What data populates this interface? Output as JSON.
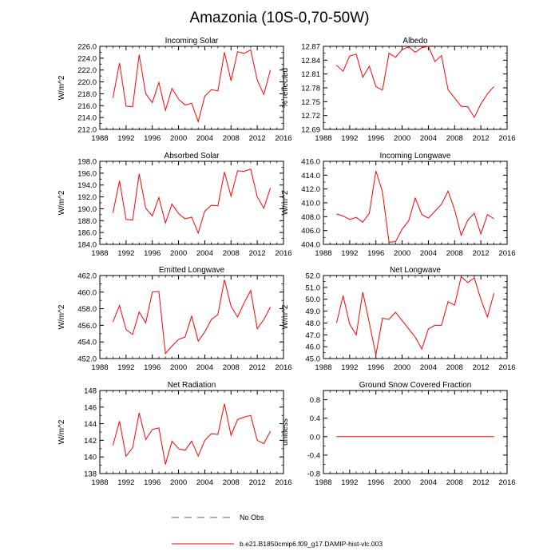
{
  "figure_title": "Amazonia (10S-0,70-50W)",
  "chart_data": [
    {
      "type": "line",
      "title": "Incoming Solar",
      "xlabel": "",
      "ylabel": "W/m^2",
      "xlim": [
        1988,
        2016
      ],
      "ylim": [
        212.0,
        226.0
      ],
      "xticks": [
        "1988",
        "1992",
        "1996",
        "2000",
        "2004",
        "2008",
        "2012",
        "2016"
      ],
      "yticks": [
        "212.0",
        "214.0",
        "216.0",
        "218.0",
        "220.0",
        "222.0",
        "224.0",
        "226.0"
      ],
      "series": [
        {
          "name": "b.e21.B1850cmip6.f09_g17.DAMIP-hist-vlc.003",
          "color": "#ff0000",
          "x": [
            1990,
            1991,
            1992,
            1993,
            1994,
            1995,
            1996,
            1997,
            1998,
            1999,
            2000,
            2001,
            2002,
            2003,
            2004,
            2005,
            2006,
            2007,
            2008,
            2009,
            2010,
            2011,
            2012,
            2013,
            2014
          ],
          "values": [
            217.3,
            223.2,
            215.9,
            215.8,
            224.6,
            218.0,
            216.5,
            219.9,
            215.2,
            218.9,
            217.1,
            216.1,
            216.4,
            213.3,
            217.6,
            218.7,
            218.5,
            225.0,
            220.2,
            225.1,
            224.8,
            225.4,
            220.3,
            217.9,
            222.0
          ]
        }
      ]
    },
    {
      "type": "line",
      "title": "Albedo",
      "xlabel": "",
      "ylabel": "% reflected",
      "xlim": [
        1988,
        2016
      ],
      "ylim": [
        12.69,
        12.87
      ],
      "xticks": [
        "1988",
        "1992",
        "1996",
        "2000",
        "2004",
        "2008",
        "2012",
        "2016"
      ],
      "yticks": [
        "12.69",
        "12.72",
        "12.75",
        "12.78",
        "12.81",
        "12.84",
        "12.87"
      ],
      "series": [
        {
          "name": "b.e21.B1850cmip6.f09_g17.DAMIP-hist-vlc.003",
          "color": "#ff0000",
          "x": [
            1990,
            1991,
            1992,
            1993,
            1994,
            1995,
            1996,
            1997,
            1998,
            1999,
            2000,
            2001,
            2002,
            2003,
            2004,
            2005,
            2006,
            2007,
            2008,
            2009,
            2010,
            2011,
            2012,
            2013,
            2014
          ],
          "values": [
            12.829,
            12.816,
            12.849,
            12.853,
            12.803,
            12.827,
            12.783,
            12.775,
            12.855,
            12.846,
            12.863,
            12.869,
            12.857,
            12.867,
            12.87,
            12.837,
            12.85,
            12.776,
            12.758,
            12.74,
            12.739,
            12.716,
            12.745,
            12.767,
            12.783
          ]
        }
      ]
    },
    {
      "type": "line",
      "title": "Absorbed Solar",
      "xlabel": "",
      "ylabel": "W/m^2",
      "xlim": [
        1988,
        2016
      ],
      "ylim": [
        184.0,
        198.0
      ],
      "xticks": [
        "1988",
        "1992",
        "1996",
        "2000",
        "2004",
        "2008",
        "2012",
        "2016"
      ],
      "yticks": [
        "184.0",
        "186.0",
        "188.0",
        "190.0",
        "192.0",
        "194.0",
        "196.0",
        "198.0"
      ],
      "series": [
        {
          "name": "b.e21.B1850cmip6.f09_g17.DAMIP-hist-vlc.003",
          "color": "#ff0000",
          "x": [
            1990,
            1991,
            1992,
            1993,
            1994,
            1995,
            1996,
            1997,
            1998,
            1999,
            2000,
            2001,
            2002,
            2003,
            2004,
            2005,
            2006,
            2007,
            2008,
            2009,
            2010,
            2011,
            2012,
            2013,
            2014
          ],
          "values": [
            189.3,
            194.7,
            188.2,
            188.1,
            195.9,
            190.1,
            188.8,
            191.9,
            187.6,
            190.8,
            189.2,
            188.3,
            188.6,
            185.9,
            189.6,
            190.6,
            190.5,
            196.2,
            192.1,
            196.4,
            196.3,
            196.7,
            192.0,
            190.1,
            193.5
          ]
        }
      ]
    },
    {
      "type": "line",
      "title": "Incoming Longwave",
      "xlabel": "",
      "ylabel": "W/m^2",
      "xlim": [
        1988,
        2016
      ],
      "ylim": [
        404.0,
        416.0
      ],
      "xticks": [
        "1988",
        "1992",
        "1996",
        "2000",
        "2004",
        "2008",
        "2012",
        "2016"
      ],
      "yticks": [
        "404.0",
        "406.0",
        "408.0",
        "410.0",
        "412.0",
        "414.0",
        "416.0"
      ],
      "series": [
        {
          "name": "b.e21.B1850cmip6.f09_g17.DAMIP-hist-vlc.003",
          "color": "#ff0000",
          "x": [
            1990,
            1991,
            1992,
            1993,
            1994,
            1995,
            1996,
            1997,
            1998,
            1999,
            2000,
            2001,
            2002,
            2003,
            2004,
            2005,
            2006,
            2007,
            2008,
            2009,
            2010,
            2011,
            2012,
            2013,
            2014
          ],
          "values": [
            408.4,
            408.1,
            407.6,
            407.9,
            407.2,
            408.5,
            414.6,
            411.6,
            404.3,
            404.4,
            406.2,
            407.4,
            410.7,
            408.3,
            407.8,
            408.8,
            409.8,
            411.7,
            409.0,
            405.3,
            407.5,
            408.5,
            405.5,
            408.3,
            407.7
          ]
        }
      ]
    },
    {
      "type": "line",
      "title": "Emitted Longwave",
      "xlabel": "",
      "ylabel": "W/m^2",
      "xlim": [
        1988,
        2016
      ],
      "ylim": [
        452.0,
        462.0
      ],
      "xticks": [
        "1988",
        "1992",
        "1996",
        "2000",
        "2004",
        "2008",
        "2012",
        "2016"
      ],
      "yticks": [
        "452.0",
        "454.0",
        "456.0",
        "458.0",
        "460.0",
        "462.0"
      ],
      "series": [
        {
          "name": "b.e21.B1850cmip6.f09_g17.DAMIP-hist-vlc.003",
          "color": "#ff0000",
          "x": [
            1990,
            1991,
            1992,
            1993,
            1994,
            1995,
            1996,
            1997,
            1998,
            1999,
            2000,
            2001,
            2002,
            2003,
            2004,
            2005,
            2006,
            2007,
            2008,
            2009,
            2010,
            2011,
            2012,
            2013,
            2014
          ],
          "values": [
            456.4,
            458.4,
            455.5,
            454.9,
            457.6,
            456.3,
            460.0,
            460.1,
            452.6,
            453.5,
            454.3,
            454.6,
            457.1,
            454.1,
            455.2,
            456.7,
            457.3,
            461.5,
            458.3,
            457.0,
            458.7,
            460.2,
            455.6,
            456.7,
            458.2
          ]
        }
      ]
    },
    {
      "type": "line",
      "title": "Net Longwave",
      "xlabel": "",
      "ylabel": "W/m^2",
      "xlim": [
        1988,
        2016
      ],
      "ylim": [
        45.0,
        52.0
      ],
      "xticks": [
        "1988",
        "1992",
        "1996",
        "2000",
        "2004",
        "2008",
        "2012",
        "2016"
      ],
      "yticks": [
        "45.0",
        "46.0",
        "47.0",
        "48.0",
        "49.0",
        "50.0",
        "51.0",
        "52.0"
      ],
      "series": [
        {
          "name": "b.e21.B1850cmip6.f09_g17.DAMIP-hist-vlc.003",
          "color": "#ff0000",
          "x": [
            1990,
            1991,
            1992,
            1993,
            1994,
            1995,
            1996,
            1997,
            1998,
            1999,
            2000,
            2001,
            2002,
            2003,
            2004,
            2005,
            2006,
            2007,
            2008,
            2009,
            2010,
            2011,
            2012,
            2013,
            2014
          ],
          "values": [
            48.0,
            50.3,
            47.9,
            47.0,
            50.6,
            48.0,
            45.3,
            48.4,
            48.3,
            48.9,
            48.2,
            47.5,
            46.8,
            45.8,
            47.5,
            47.8,
            47.8,
            49.8,
            49.5,
            51.9,
            51.4,
            51.8,
            50.0,
            48.5,
            50.5
          ]
        }
      ]
    },
    {
      "type": "line",
      "title": "Net Radiation",
      "xlabel": "",
      "ylabel": "W/m^2",
      "xlim": [
        1988,
        2016
      ],
      "ylim": [
        138,
        148
      ],
      "xticks": [
        "1988",
        "1992",
        "1996",
        "2000",
        "2004",
        "2008",
        "2012",
        "2016"
      ],
      "yticks": [
        "138",
        "140",
        "142",
        "144",
        "146",
        "148"
      ],
      "series": [
        {
          "name": "b.e21.B1850cmip6.f09_g17.DAMIP-hist-vlc.003",
          "color": "#ff0000",
          "x": [
            1990,
            1991,
            1992,
            1993,
            1994,
            1995,
            1996,
            1997,
            1998,
            1999,
            2000,
            2001,
            2002,
            2003,
            2004,
            2005,
            2006,
            2007,
            2008,
            2009,
            2010,
            2011,
            2012,
            2013,
            2014
          ],
          "values": [
            141.4,
            144.3,
            140.1,
            141.1,
            145.3,
            142.1,
            143.3,
            143.5,
            139.1,
            141.9,
            141.0,
            140.8,
            141.9,
            140.1,
            142.0,
            142.8,
            142.7,
            146.4,
            142.6,
            144.5,
            144.8,
            145.0,
            142.0,
            141.6,
            143.1
          ]
        }
      ]
    },
    {
      "type": "line",
      "title": "Ground Snow Covered Fraction",
      "xlabel": "",
      "ylabel": "unitless",
      "xlim": [
        1988,
        2016
      ],
      "ylim": [
        -0.8,
        1.0
      ],
      "xticks": [
        "1988",
        "1992",
        "1996",
        "2000",
        "2004",
        "2008",
        "2012",
        "2016"
      ],
      "yticks": [
        "-0.8",
        "-0.4",
        "0.0",
        "0.4",
        "0.8"
      ],
      "ytick_values": [
        -0.8,
        -0.4,
        0.0,
        0.4,
        0.8
      ],
      "series": [
        {
          "name": "b.e21.B1850cmip6.f09_g17.DAMIP-hist-vlc.003",
          "color": "#ff0000",
          "x": [
            1990,
            1991,
            1992,
            1993,
            1994,
            1995,
            1996,
            1997,
            1998,
            1999,
            2000,
            2001,
            2002,
            2003,
            2004,
            2005,
            2006,
            2007,
            2008,
            2009,
            2010,
            2011,
            2012,
            2013,
            2014
          ],
          "values": [
            0,
            0,
            0,
            0,
            0,
            0,
            0,
            0,
            0,
            0,
            0,
            0,
            0,
            0,
            0,
            0,
            0,
            0,
            0,
            0,
            0,
            0,
            0,
            0,
            0
          ]
        }
      ]
    }
  ],
  "legend": {
    "no_obs_label": "No Obs",
    "no_obs_color": "#5555bb",
    "model_label": "b.e21.B1850cmip6.f09_g17.DAMIP-hist-vlc.003",
    "model_color": "#ff0000"
  }
}
